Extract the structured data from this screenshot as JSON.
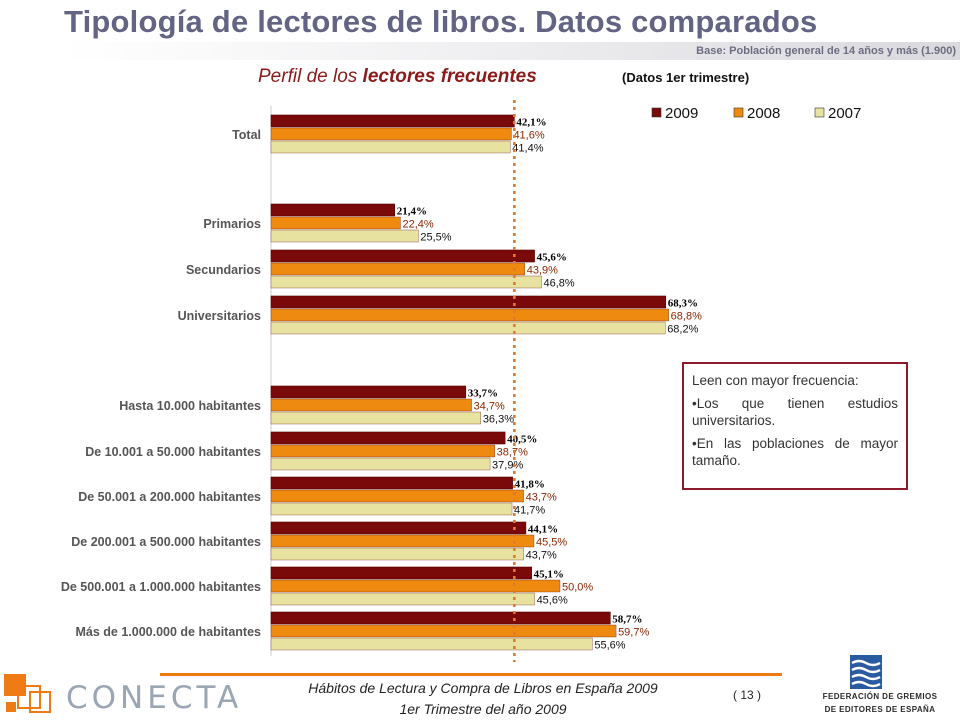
{
  "title": "Tipología de lectores de libros. Datos comparados",
  "base": "Base: Población general de 14 años y más (1.900)",
  "subtitle": {
    "prefix": "Perfil de los ",
    "bold": "lectores frecuentes",
    "note": "(Datos 1er trimestre)"
  },
  "colors": {
    "series_2009": "#7a0a0a",
    "series_2008": "#ee8a10",
    "series_2007": "#e8e2a0",
    "reference_line": "#e07a30",
    "label_2009": "#000000",
    "label_2008": "#8b2500",
    "label_2007": "#111111"
  },
  "chart_data": {
    "type": "bar",
    "orientation": "horizontal",
    "legend_position": "top-right",
    "reference_line_value": 42.1,
    "categories": [
      "Total",
      "Primarios",
      "Secundarios",
      "Universitarios",
      "Hasta 10.000 habitantes",
      "De 10.001 a 50.000 habitantes",
      "De 50.001 a 200.000 habitantes",
      "De 200.001 a 500.000 habitantes",
      "De 500.001 a 1.000.000 habitantes",
      "Más de 1.000.000 de habitantes"
    ],
    "series": [
      {
        "name": "2009",
        "values": [
          42.1,
          21.4,
          45.6,
          68.3,
          33.7,
          40.5,
          41.8,
          44.1,
          45.1,
          58.7
        ],
        "labels": [
          "42,1%",
          "21,4%",
          "45,6%",
          "68,3%",
          "33,7%",
          "40,5%",
          "41,8%",
          "44,1%",
          "45,1%",
          "58,7%"
        ]
      },
      {
        "name": "2008",
        "values": [
          41.6,
          22.4,
          43.9,
          68.8,
          34.7,
          38.7,
          43.7,
          45.5,
          50.0,
          59.7
        ],
        "labels": [
          "41,6%",
          "22,4%",
          "43,9%",
          "68,8%",
          "34,7%",
          "38,7%",
          "43,7%",
          "45,5%",
          "50,0%",
          "59,7%"
        ]
      },
      {
        "name": "2007",
        "values": [
          41.4,
          25.5,
          46.8,
          68.2,
          36.3,
          37.9,
          41.7,
          43.7,
          45.6,
          55.6
        ],
        "labels": [
          "41,4%",
          "25,5%",
          "46,8%",
          "68,2%",
          "36,3%",
          "37,9%",
          "41,7%",
          "43,7%",
          "45,6%",
          "55,6%"
        ]
      }
    ],
    "xlim": [
      0,
      100
    ]
  },
  "callout": {
    "lines": [
      "Leen con mayor frecuencia:",
      "•Los que tienen estudios universitarios.",
      "•En las poblaciones de mayor tamaño."
    ]
  },
  "footer": {
    "logo_text": "CONECTA",
    "line1": "Hábitos de Lectura y Compra de Libros en España 2009",
    "line2": "1er Trimestre del año 2009",
    "page": "( 13 )",
    "publisher_line1": "FEDERACIÓN DE GREMIOS",
    "publisher_line2": "DE EDITORES DE ESPAÑA"
  }
}
